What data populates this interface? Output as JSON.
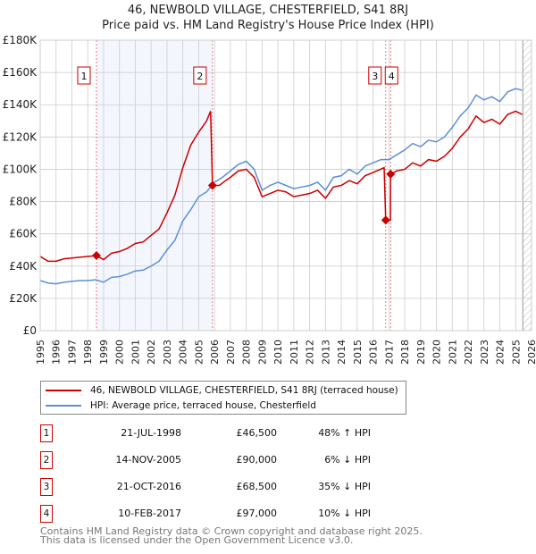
{
  "chart_data": {
    "type": "line",
    "title": "46, NEWBOLD VILLAGE, CHESTERFIELD, S41 8RJ",
    "subtitle": "Price paid vs. HM Land Registry's House Price Index (HPI)",
    "xlim": [
      1995,
      2026
    ],
    "ylim": [
      0,
      180000
    ],
    "x_ticks": [
      "1995",
      "1996",
      "1997",
      "1998",
      "1999",
      "2000",
      "2001",
      "2002",
      "2003",
      "2004",
      "2005",
      "2006",
      "2007",
      "2008",
      "2009",
      "2010",
      "2011",
      "2012",
      "2013",
      "2014",
      "2015",
      "2016",
      "2017",
      "2018",
      "2019",
      "2020",
      "2021",
      "2022",
      "2023",
      "2024",
      "2025",
      "2026"
    ],
    "y_ticks": [
      {
        "v": 0,
        "label": "£0"
      },
      {
        "v": 20000,
        "label": "£20K"
      },
      {
        "v": 40000,
        "label": "£40K"
      },
      {
        "v": 60000,
        "label": "£60K"
      },
      {
        "v": 80000,
        "label": "£80K"
      },
      {
        "v": 100000,
        "label": "£100K"
      },
      {
        "v": 120000,
        "label": "£120K"
      },
      {
        "v": 140000,
        "label": "£140K"
      },
      {
        "v": 160000,
        "label": "£160K"
      },
      {
        "v": 180000,
        "label": "£180K"
      }
    ],
    "grid": true,
    "series": [
      {
        "name": "46, NEWBOLD VILLAGE, CHESTERFIELD, S41 8RJ (terraced house)",
        "color": "#cc0000",
        "x": [
          1995,
          1995.5,
          1996,
          1996.5,
          1997,
          1997.5,
          1998,
          1998.55,
          1999,
          1999.5,
          2000,
          2000.5,
          2001,
          2001.5,
          2002,
          2002.5,
          2003,
          2003.5,
          2004,
          2004.5,
          2005,
          2005.5,
          2005.75,
          2005.87,
          2006.3,
          2006.7,
          2007,
          2007.5,
          2008,
          2008.5,
          2009,
          2009.5,
          2010,
          2010.5,
          2011,
          2011.5,
          2012,
          2012.5,
          2013,
          2013.5,
          2014,
          2014.5,
          2015,
          2015.5,
          2016,
          2016.7,
          2016.8,
          2017.1,
          2017.11,
          2017.5,
          2018,
          2018.5,
          2019,
          2019.5,
          2020,
          2020.5,
          2021,
          2021.5,
          2022,
          2022.5,
          2023,
          2023.5,
          2024,
          2024.5,
          2025,
          2025.4
        ],
        "y": [
          46000,
          43000,
          43000,
          44500,
          45000,
          45500,
          46000,
          46500,
          44000,
          48000,
          49000,
          51000,
          54000,
          55000,
          59000,
          63000,
          73000,
          84000,
          101000,
          115000,
          123000,
          130000,
          136000,
          90000,
          90000,
          93000,
          95000,
          99000,
          100000,
          95000,
          83000,
          85000,
          87000,
          86000,
          83000,
          84000,
          85000,
          87000,
          82000,
          89000,
          90000,
          93000,
          91000,
          96000,
          98000,
          101000,
          68500,
          68500,
          97000,
          99000,
          100000,
          104000,
          102000,
          106000,
          105000,
          108000,
          113000,
          120000,
          125000,
          133000,
          129000,
          131000,
          128000,
          134000,
          136000,
          134000
        ]
      },
      {
        "name": "HPI: Average price, terraced house, Chesterfield",
        "color": "#5b8fd6",
        "x": [
          1995,
          1995.5,
          1996,
          1996.5,
          1997,
          1997.5,
          1998,
          1998.5,
          1999,
          1999.5,
          2000,
          2000.5,
          2001,
          2001.5,
          2002,
          2002.5,
          2003,
          2003.5,
          2004,
          2004.5,
          2005,
          2005.5,
          2006,
          2006.5,
          2007,
          2007.5,
          2008,
          2008.5,
          2009,
          2009.5,
          2010,
          2010.5,
          2011,
          2011.5,
          2012,
          2012.5,
          2013,
          2013.5,
          2014,
          2014.5,
          2015,
          2015.5,
          2016,
          2016.5,
          2017,
          2017.5,
          2018,
          2018.5,
          2019,
          2019.5,
          2020,
          2020.5,
          2021,
          2021.5,
          2022,
          2022.5,
          2023,
          2023.5,
          2024,
          2024.5,
          2025,
          2025.4
        ],
        "y": [
          31000,
          29500,
          29000,
          30000,
          30500,
          31000,
          31000,
          31500,
          30000,
          33000,
          33500,
          35000,
          37000,
          37500,
          40000,
          43000,
          50000,
          56000,
          68000,
          75000,
          83000,
          86000,
          92000,
          95000,
          99000,
          103000,
          105000,
          100000,
          87000,
          90000,
          92000,
          90000,
          88000,
          89000,
          90000,
          92000,
          87000,
          95000,
          96000,
          100000,
          97000,
          102000,
          104000,
          106000,
          106000,
          109000,
          112000,
          116000,
          114000,
          118000,
          117000,
          120000,
          126000,
          133000,
          138000,
          146000,
          143000,
          145000,
          142000,
          148000,
          150000,
          149000
        ]
      }
    ],
    "sales": [
      {
        "n": "1",
        "x": 1998.55,
        "y": 46500,
        "date": "21-JUL-1998",
        "price": "£46,500",
        "hpi": "48% ↑ HPI"
      },
      {
        "n": "2",
        "x": 2005.87,
        "y": 90000,
        "date": "14-NOV-2005",
        "price": "£90,000",
        "hpi": "6% ↓ HPI"
      },
      {
        "n": "3",
        "x": 2016.8,
        "y": 68500,
        "date": "21-OCT-2016",
        "price": "£68,500",
        "hpi": "35% ↓ HPI"
      },
      {
        "n": "4",
        "x": 2017.11,
        "y": 97000,
        "date": "10-FEB-2017",
        "price": "£97,000",
        "hpi": "10% ↓ HPI"
      }
    ],
    "legend_position": "below"
  },
  "footer": {
    "line1": "Contains HM Land Registry data © Crown copyright and database right 2025.",
    "line2": "This data is licensed under the Open Government Licence v3.0."
  }
}
